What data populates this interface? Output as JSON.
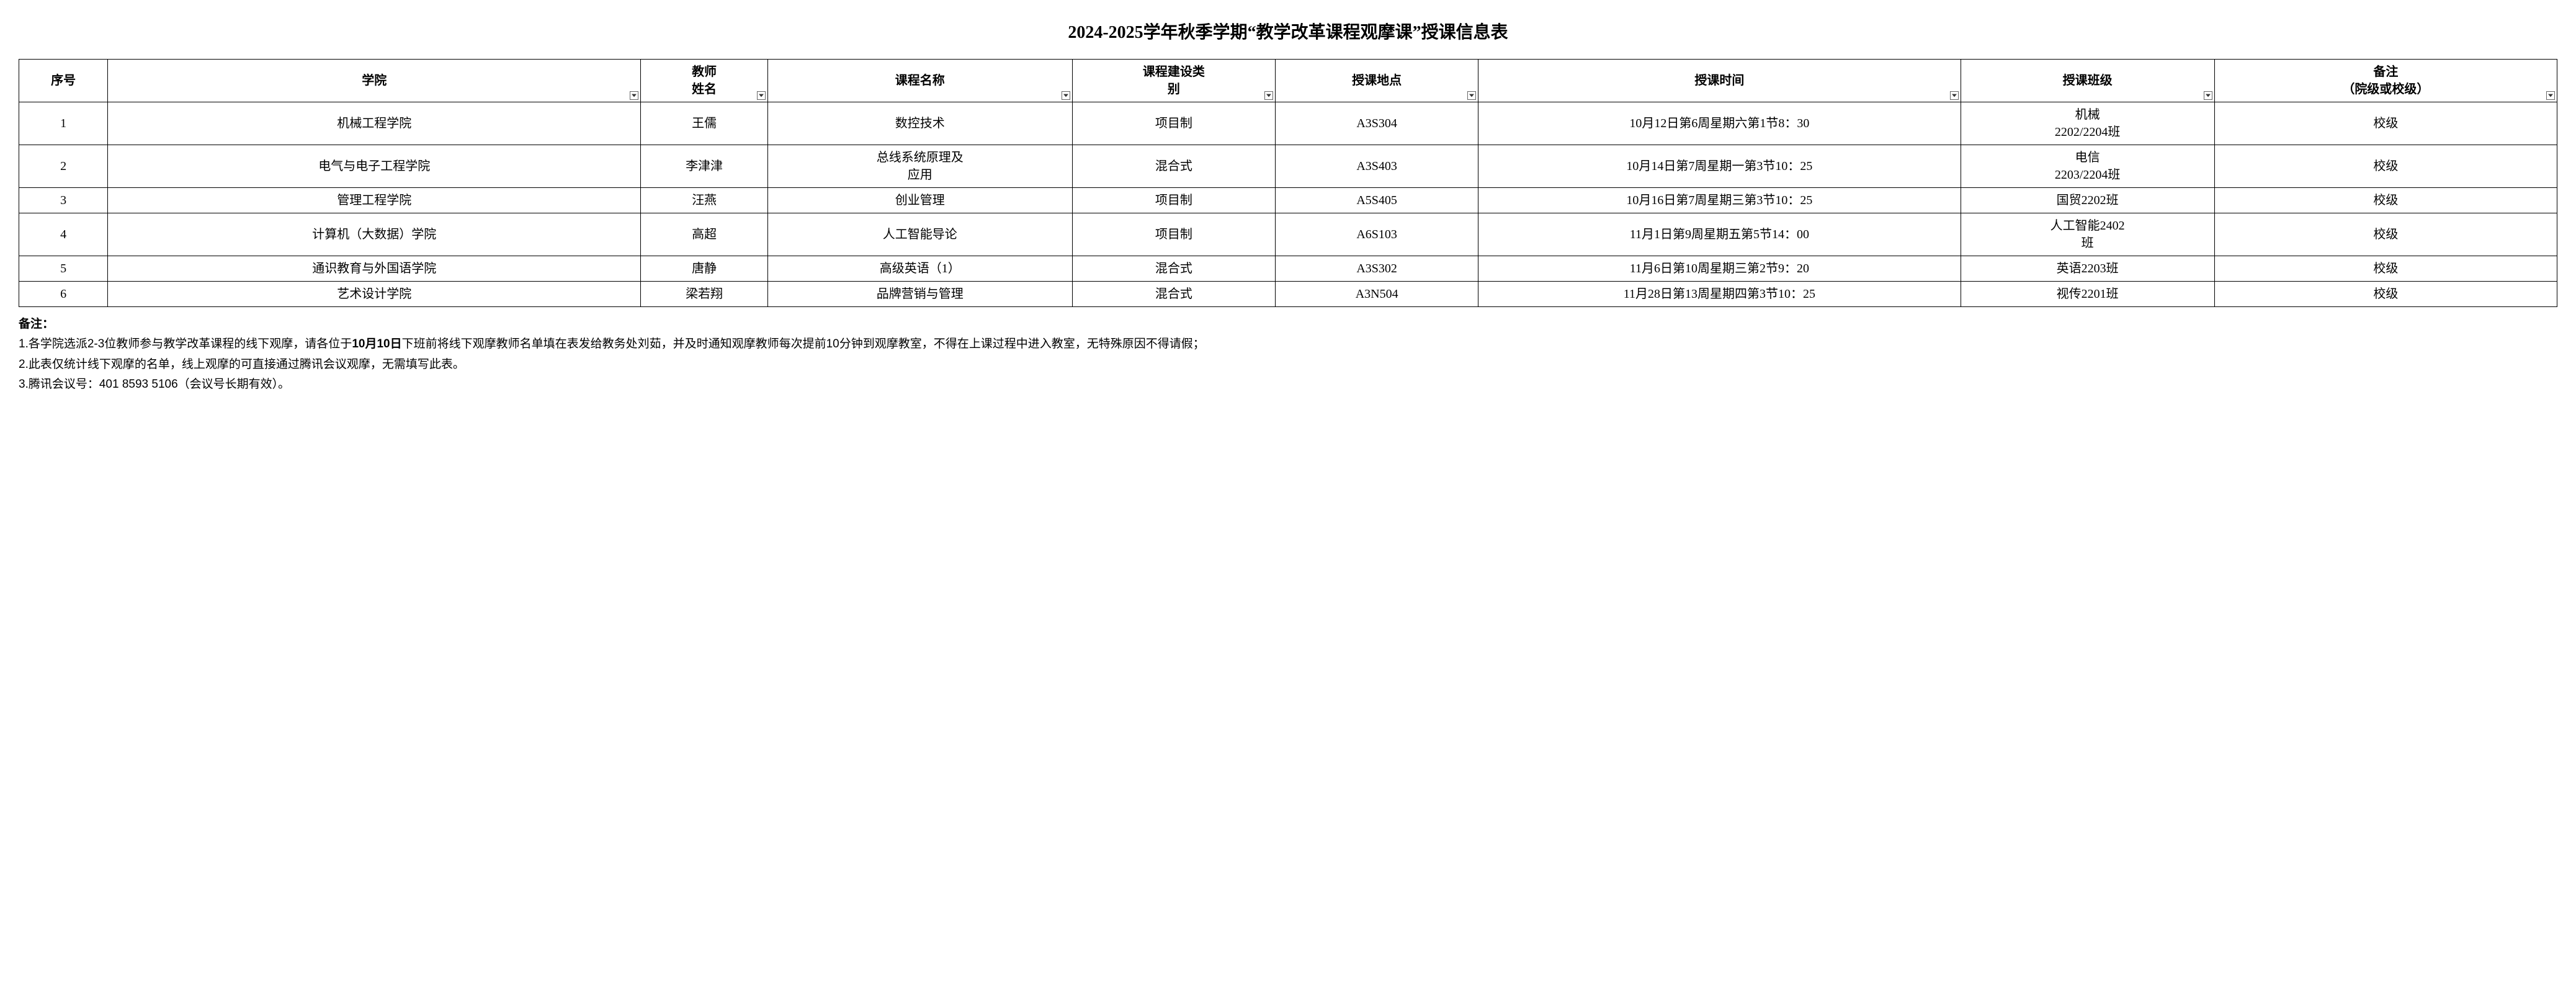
{
  "title": "2024-2025学年秋季学期“教学改革课程观摩课”授课信息表",
  "columns": {
    "seq": "序号",
    "college": "学院",
    "teacher": "教师\n姓名",
    "course": "课程名称",
    "type": "课程建设类\n别",
    "location": "授课地点",
    "time": "授课时间",
    "class": "授课班级",
    "note": "备注\n（院级或校级）"
  },
  "rows": [
    {
      "seq": "1",
      "college": "机械工程学院",
      "teacher": "王儒",
      "course": "数控技术",
      "type": "项目制",
      "location": "A3S304",
      "time": "10月12日第6周星期六第1节8：30",
      "class": "机械\n2202/2204班",
      "note": "校级"
    },
    {
      "seq": "2",
      "college": "电气与电子工程学院",
      "teacher": "李津津",
      "course": "总线系统原理及\n应用",
      "type": "混合式",
      "location": "A3S403",
      "time": "10月14日第7周星期一第3节10：25",
      "class": "电信\n2203/2204班",
      "note": "校级"
    },
    {
      "seq": "3",
      "college": "管理工程学院",
      "teacher": "汪燕",
      "course": "创业管理",
      "type": "项目制",
      "location": "A5S405",
      "time": "10月16日第7周星期三第3节10：25",
      "class": "国贸2202班",
      "note": "校级"
    },
    {
      "seq": "4",
      "college": "计算机（大数据）学院",
      "teacher": "高超",
      "course": "人工智能导论",
      "type": "项目制",
      "location": "A6S103",
      "time": "11月1日第9周星期五第5节14：00",
      "class": "人工智能2402\n班",
      "note": "校级"
    },
    {
      "seq": "5",
      "college": "通识教育与外国语学院",
      "teacher": "唐静",
      "course": "高级英语（1）",
      "type": "混合式",
      "location": "A3S302",
      "time": "11月6日第10周星期三第2节9：20",
      "class": "英语2203班",
      "note": "校级"
    },
    {
      "seq": "6",
      "college": "艺术设计学院",
      "teacher": "梁若翔",
      "course": "品牌营销与管理",
      "type": "混合式",
      "location": "A3N504",
      "time": "11月28日第13周星期四第3节10：25",
      "class": "视传2201班",
      "note": "校级"
    }
  ],
  "footnotes": {
    "label": "备注：",
    "line1_prefix": "1.各学院选派2-3位教师参与教学改革课程的线下观摩，请各位于",
    "line1_bold": "10月10日",
    "line1_suffix": "下班前将线下观摩教师名单填在表发给教务处刘茹，并及时通知观摩教师每次提前10分钟到观摩教室，不得在上课过程中进入教室，无特殊原因不得请假；",
    "line2": "2.此表仅统计线下观摩的名单，线上观摩的可直接通过腾讯会议观摩，无需填写此表。",
    "line3": "3.腾讯会议号：401 8593 5106（会议号长期有效）。"
  }
}
